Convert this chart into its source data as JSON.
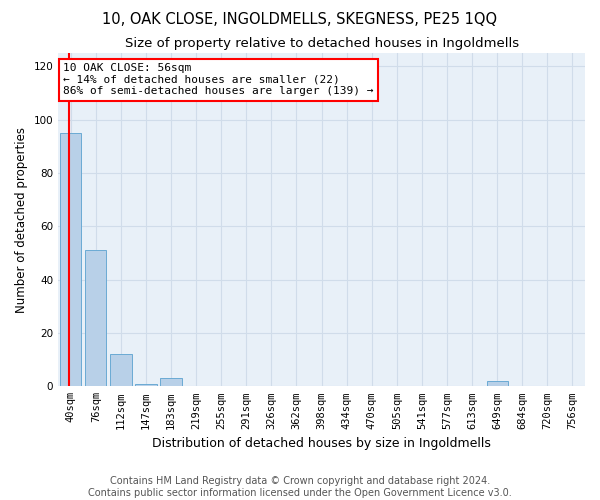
{
  "title1": "10, OAK CLOSE, INGOLDMELLS, SKEGNESS, PE25 1QQ",
  "title2": "Size of property relative to detached houses in Ingoldmells",
  "xlabel": "Distribution of detached houses by size in Ingoldmells",
  "ylabel": "Number of detached properties",
  "bar_values": [
    95,
    51,
    12,
    1,
    3,
    0,
    0,
    0,
    0,
    0,
    0,
    0,
    0,
    0,
    0,
    0,
    0,
    2,
    0,
    0,
    0
  ],
  "bar_labels": [
    "40sqm",
    "76sqm",
    "112sqm",
    "147sqm",
    "183sqm",
    "219sqm",
    "255sqm",
    "291sqm",
    "326sqm",
    "362sqm",
    "398sqm",
    "434sqm",
    "470sqm",
    "505sqm",
    "541sqm",
    "577sqm",
    "613sqm",
    "649sqm",
    "684sqm",
    "720sqm",
    "756sqm"
  ],
  "bar_color": "#b8d0e8",
  "bar_edge_color": "#6aaad4",
  "annotation_line1": "10 OAK CLOSE: 56sqm",
  "annotation_line2": "← 14% of detached houses are smaller (22)",
  "annotation_line3": "86% of semi-detached houses are larger (139) →",
  "annotation_box_color": "white",
  "annotation_box_edge_color": "red",
  "redline_x": -0.08,
  "ylim": [
    0,
    125
  ],
  "yticks": [
    0,
    20,
    40,
    60,
    80,
    100,
    120
  ],
  "grid_color": "#d0dcea",
  "bg_color": "#e8f0f8",
  "footer1": "Contains HM Land Registry data © Crown copyright and database right 2024.",
  "footer2": "Contains public sector information licensed under the Open Government Licence v3.0.",
  "title1_fontsize": 10.5,
  "title2_fontsize": 9.5,
  "xlabel_fontsize": 9,
  "ylabel_fontsize": 8.5,
  "tick_fontsize": 7.5,
  "annot_fontsize": 8,
  "footer_fontsize": 7
}
